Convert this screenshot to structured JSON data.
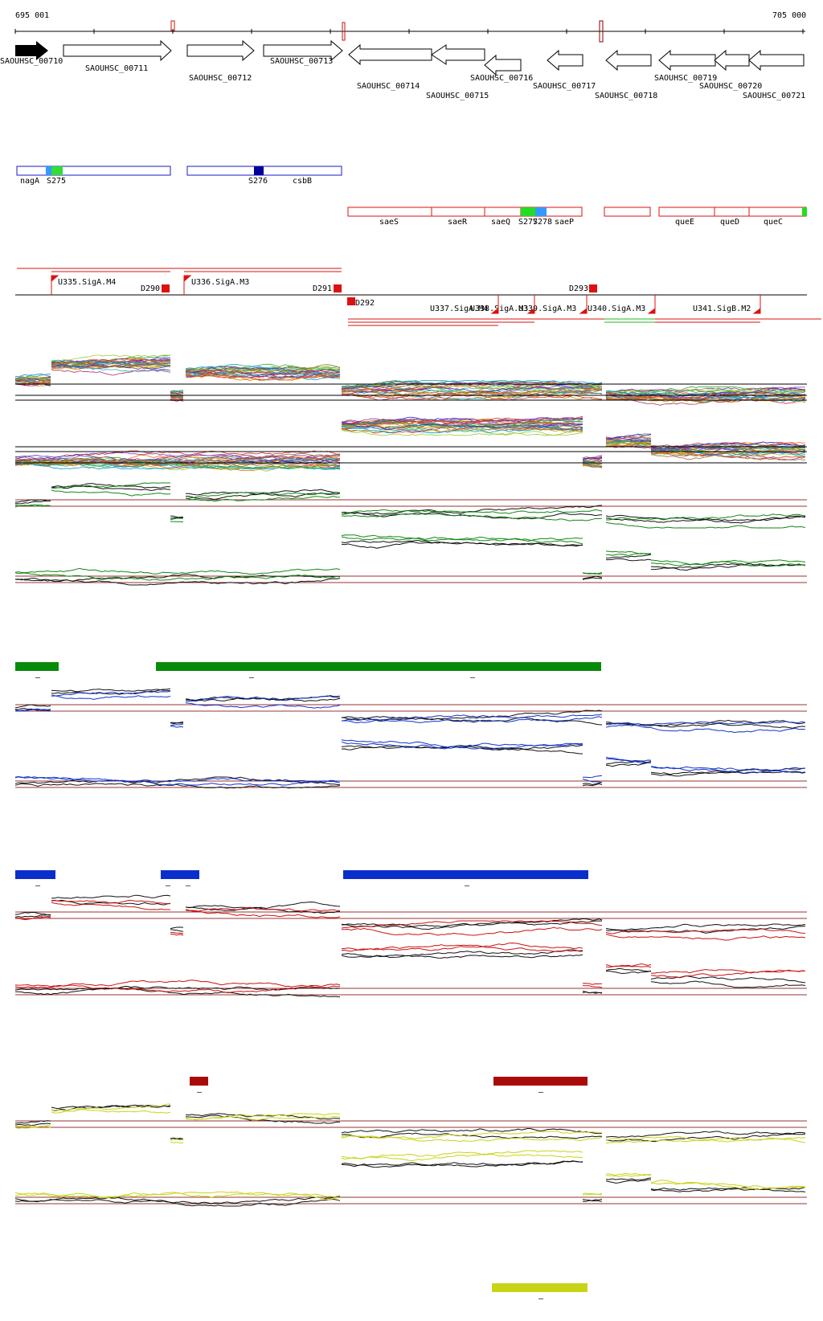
{
  "ruler": {
    "start_label": "695 001",
    "end_label": "705 000"
  },
  "genes": [
    {
      "label": "SAOUHSC_00710",
      "strand": "+",
      "highlight": true
    },
    {
      "label": "SAOUHSC_00711",
      "strand": "+"
    },
    {
      "label": "SAOUHSC_00712",
      "strand": "+"
    },
    {
      "label": "SAOUHSC_00713",
      "strand": "+"
    },
    {
      "label": "SAOUHSC_00714",
      "strand": "-"
    },
    {
      "label": "SAOUHSC_00715",
      "strand": "-"
    },
    {
      "label": "SAOUHSC_00716",
      "strand": "-"
    },
    {
      "label": "SAOUHSC_00717",
      "strand": "-"
    },
    {
      "label": "SAOUHSC_00718",
      "strand": "-"
    },
    {
      "label": "SAOUHSC_00719",
      "strand": "-"
    },
    {
      "label": "SAOUHSC_00720",
      "strand": "-"
    },
    {
      "label": "SAOUHSC_00721",
      "strand": "-"
    }
  ],
  "plus_features": [
    "nagA",
    "S275",
    "S276",
    "csbB"
  ],
  "minus_features": [
    "saeS",
    "saeR",
    "saeQ",
    "S277",
    "S278",
    "saeP",
    "queE",
    "queD",
    "queC"
  ],
  "plus_boundaries": [
    "U335.SigA.M4",
    "D290",
    "U336.SigA.M3",
    "D291"
  ],
  "minus_boundaries": [
    "D292",
    "D293",
    "U337.SigA.M4",
    "U338.SigA.M3",
    "U339.SigA.M3",
    "U340.SigA.M3",
    "U341.SigB.M2"
  ],
  "colors": {
    "gene_outline": "#000000",
    "plus_track": "#1a1acc",
    "minus_track": "#dd1111",
    "green": "#118811",
    "blue": "#1133cc",
    "red": "#cc1111",
    "yellow": "#c8d418",
    "ref_line": "#993333"
  },
  "condition_tracks": [
    {
      "color": "#118811",
      "bar_color": "#0a8a0a",
      "marks": [
        "–",
        "–",
        "–"
      ]
    },
    {
      "color": "#1133cc",
      "bar_color": "#0a2ecc",
      "marks": [
        "–",
        "–",
        "–",
        "–"
      ]
    },
    {
      "color": "#cc1111",
      "bar_color": "#aa0a0a",
      "marks": [
        "–",
        "–"
      ]
    },
    {
      "color": "#c8d418",
      "bar_color": "#c8d418",
      "marks": [
        "–"
      ]
    }
  ]
}
